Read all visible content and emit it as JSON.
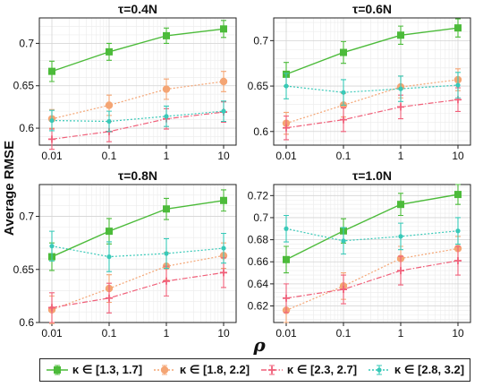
{
  "figure": {
    "ylabel": "Average RMSE",
    "xlabel": "ρ"
  },
  "legend": [
    {
      "label": "κ ∈ [1.3, 1.7]",
      "color": "#4cbb3a",
      "marker": "square",
      "dash": "solid"
    },
    {
      "label": "κ ∈ [1.8, 2.2]",
      "color": "#f4a574",
      "marker": "circle",
      "dash": "dotted"
    },
    {
      "label": "κ ∈ [2.3, 2.7]",
      "color": "#f0607a",
      "marker": "plus",
      "dash": "dashdot"
    },
    {
      "label": "κ ∈ [2.8, 3.2]",
      "color": "#38c9b8",
      "marker": "dot",
      "dash": "dotted"
    }
  ],
  "chart_data": [
    {
      "type": "line",
      "title": "τ=0.4N",
      "x": [
        0.01,
        0.1,
        1,
        10
      ],
      "xscale": "log",
      "xticks": [
        "0.01",
        "0.1",
        "1",
        "10"
      ],
      "ylim": [
        0.58,
        0.73
      ],
      "yticks": [
        0.6,
        0.65,
        0.7
      ],
      "ytick_labels": [
        "0.6",
        "0.65",
        "0.7"
      ],
      "grid": true,
      "series": [
        {
          "name": "κ ∈ [1.3, 1.7]",
          "values": [
            0.667,
            0.69,
            0.709,
            0.717
          ],
          "err": [
            0.012,
            0.01,
            0.009,
            0.01
          ]
        },
        {
          "name": "κ ∈ [1.8, 2.2]",
          "values": [
            0.611,
            0.627,
            0.646,
            0.655
          ],
          "err": [
            0.011,
            0.012,
            0.012,
            0.012
          ]
        },
        {
          "name": "κ ∈ [2.3, 2.7]",
          "values": [
            0.587,
            0.596,
            0.611,
            0.619
          ],
          "err": [
            0.012,
            0.012,
            0.012,
            0.012
          ]
        },
        {
          "name": "κ ∈ [2.8, 3.2]",
          "values": [
            0.609,
            0.608,
            0.614,
            0.62
          ],
          "err": [
            0.012,
            0.012,
            0.012,
            0.012
          ]
        }
      ]
    },
    {
      "type": "line",
      "title": "τ=0.6N",
      "x": [
        0.01,
        0.1,
        1,
        10
      ],
      "xscale": "log",
      "xticks": [
        "0.01",
        "0.1",
        "1",
        "10"
      ],
      "ylim": [
        0.585,
        0.725
      ],
      "yticks": [
        0.6,
        0.65,
        0.7
      ],
      "ytick_labels": [
        "0.6",
        "0.65",
        "0.7"
      ],
      "grid": true,
      "series": [
        {
          "name": "κ ∈ [1.3, 1.7]",
          "values": [
            0.663,
            0.687,
            0.706,
            0.714
          ],
          "err": [
            0.013,
            0.012,
            0.01,
            0.01
          ]
        },
        {
          "name": "κ ∈ [1.8, 2.2]",
          "values": [
            0.609,
            0.629,
            0.649,
            0.657
          ],
          "err": [
            0.012,
            0.013,
            0.012,
            0.012
          ]
        },
        {
          "name": "κ ∈ [2.3, 2.7]",
          "values": [
            0.604,
            0.613,
            0.627,
            0.635
          ],
          "err": [
            0.013,
            0.013,
            0.013,
            0.013
          ]
        },
        {
          "name": "κ ∈ [2.8, 3.2]",
          "values": [
            0.65,
            0.643,
            0.647,
            0.651
          ],
          "err": [
            0.014,
            0.014,
            0.014,
            0.014
          ]
        }
      ]
    },
    {
      "type": "line",
      "title": "τ=0.8N",
      "x": [
        0.01,
        0.1,
        1,
        10
      ],
      "xscale": "log",
      "xticks": [
        "0.01",
        "0.1",
        "1",
        "10"
      ],
      "ylim": [
        0.6,
        0.73
      ],
      "yticks": [
        0.6,
        0.65,
        0.7
      ],
      "ytick_labels": [
        "0.6",
        "0.65",
        "0.7"
      ],
      "grid": true,
      "series": [
        {
          "name": "κ ∈ [1.3, 1.7]",
          "values": [
            0.662,
            0.686,
            0.707,
            0.715
          ],
          "err": [
            0.013,
            0.012,
            0.01,
            0.01
          ]
        },
        {
          "name": "κ ∈ [1.8, 2.2]",
          "values": [
            0.612,
            0.632,
            0.653,
            0.663
          ],
          "err": [
            0.013,
            0.013,
            0.013,
            0.012
          ]
        },
        {
          "name": "κ ∈ [2.3, 2.7]",
          "values": [
            0.614,
            0.623,
            0.639,
            0.647
          ],
          "err": [
            0.014,
            0.014,
            0.014,
            0.014
          ]
        },
        {
          "name": "κ ∈ [2.8, 3.2]",
          "values": [
            0.672,
            0.662,
            0.665,
            0.67
          ],
          "err": [
            0.014,
            0.014,
            0.014,
            0.014
          ]
        }
      ]
    },
    {
      "type": "line",
      "title": "τ=1.0N",
      "x": [
        0.01,
        0.1,
        1,
        10
      ],
      "xscale": "log",
      "xticks": [
        "0.01",
        "0.1",
        "1",
        "10"
      ],
      "ylim": [
        0.605,
        0.73
      ],
      "yticks": [
        0.62,
        0.64,
        0.66,
        0.68,
        0.7,
        0.72
      ],
      "ytick_labels": [
        "0.62",
        "0.64",
        "0.66",
        "0.68",
        "0.7",
        "0.72"
      ],
      "grid": true,
      "series": [
        {
          "name": "κ ∈ [1.3, 1.7]",
          "values": [
            0.662,
            0.688,
            0.712,
            0.721
          ],
          "err": [
            0.012,
            0.011,
            0.01,
            0.009
          ]
        },
        {
          "name": "κ ∈ [1.8, 2.2]",
          "values": [
            0.616,
            0.638,
            0.663,
            0.672
          ],
          "err": [
            0.011,
            0.012,
            0.011,
            0.011
          ]
        },
        {
          "name": "κ ∈ [2.3, 2.7]",
          "values": [
            0.627,
            0.635,
            0.652,
            0.661
          ],
          "err": [
            0.013,
            0.013,
            0.013,
            0.013
          ]
        },
        {
          "name": "κ ∈ [2.8, 3.2]",
          "values": [
            0.69,
            0.679,
            0.683,
            0.688
          ],
          "err": [
            0.012,
            0.012,
            0.012,
            0.012
          ]
        }
      ]
    }
  ]
}
